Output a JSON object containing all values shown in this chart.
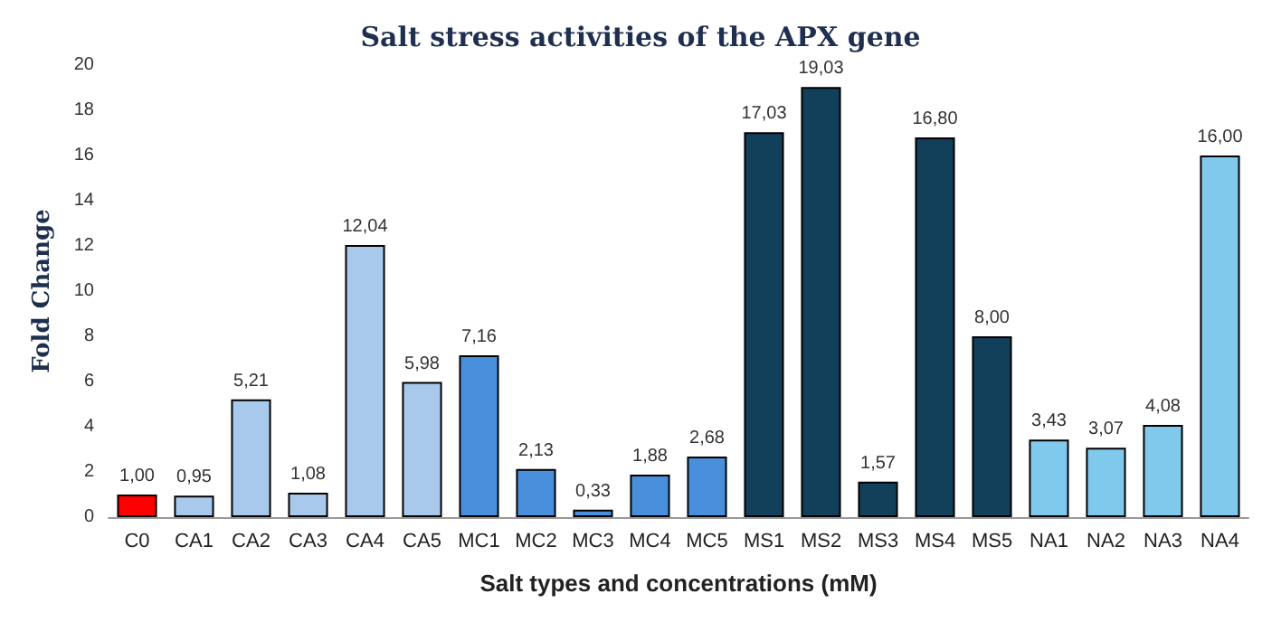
{
  "chart_data": {
    "type": "bar",
    "title": "Salt stress activities of the APX gene",
    "xlabel": "Salt types and concentrations (mM)",
    "ylabel": "Fold Change",
    "categories": [
      "C0",
      "CA1",
      "CA2",
      "CA3",
      "CA4",
      "CA5",
      "MC1",
      "MC2",
      "MC3",
      "MC4",
      "MC5",
      "MS1",
      "MS2",
      "MS3",
      "MS4",
      "MS5",
      "NA1",
      "NA2",
      "NA3",
      "NA4"
    ],
    "values": [
      1.0,
      0.95,
      5.21,
      1.08,
      12.04,
      5.98,
      7.16,
      2.13,
      0.33,
      1.88,
      2.68,
      17.03,
      19.03,
      1.57,
      16.8,
      8.0,
      3.43,
      3.07,
      4.08,
      16.0
    ],
    "value_labels": [
      "1,00",
      "0,95",
      "5,21",
      "1,08",
      "12,04",
      "5,98",
      "7,16",
      "2,13",
      "0,33",
      "1,88",
      "2,68",
      "17,03",
      "19,03",
      "1,57",
      "16,80",
      "8,00",
      "3,43",
      "3,07",
      "4,08",
      "16,00"
    ],
    "colors": [
      "#ff0000",
      "#a9c9ec",
      "#a9c9ec",
      "#a9c9ec",
      "#a9c9ec",
      "#a9c9ec",
      "#4a8fdb",
      "#4a8fdb",
      "#4a8fdb",
      "#4a8fdb",
      "#4a8fdb",
      "#123f5a",
      "#123f5a",
      "#123f5a",
      "#123f5a",
      "#123f5a",
      "#80c8ec",
      "#80c8ec",
      "#80c8ec",
      "#80c8ec"
    ],
    "ylim": [
      0,
      20
    ],
    "yticks": [
      0,
      2,
      4,
      6,
      8,
      10,
      12,
      14,
      16,
      18,
      20
    ]
  }
}
